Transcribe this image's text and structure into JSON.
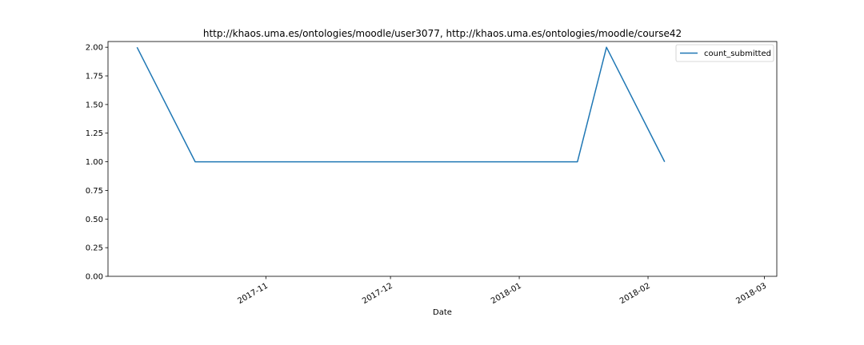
{
  "chart_data": {
    "type": "line",
    "title": "http://khaos.uma.es/ontologies/moodle/user3077, http://khaos.uma.es/ontologies/moodle/course42",
    "xlabel": "Date",
    "ylabel": "",
    "x_type": "date",
    "xlim": [
      "2017-09-24",
      "2018-03-04"
    ],
    "ylim": [
      0,
      2.05
    ],
    "x_ticks": [
      "2017-11-01",
      "2017-12-01",
      "2018-01-01",
      "2018-02-01",
      "2018-03-01"
    ],
    "x_tick_labels": [
      "2017-11",
      "2017-12",
      "2018-01",
      "2018-02",
      "2018-03"
    ],
    "y_ticks": [
      0,
      0.25,
      0.5,
      0.75,
      1.0,
      1.25,
      1.5,
      1.75,
      2.0
    ],
    "y_tick_labels": [
      "0.00",
      "0.25",
      "0.50",
      "0.75",
      "1.00",
      "1.25",
      "1.50",
      "1.75",
      "2.00"
    ],
    "grid": false,
    "legend_position": "top-right",
    "series": [
      {
        "name": "count_submitted",
        "color": "#1f77b4",
        "x": [
          "2017-10-01",
          "2017-10-15",
          "2018-01-15",
          "2018-01-22",
          "2018-02-05"
        ],
        "y": [
          2,
          1,
          1,
          2,
          1
        ]
      }
    ]
  }
}
